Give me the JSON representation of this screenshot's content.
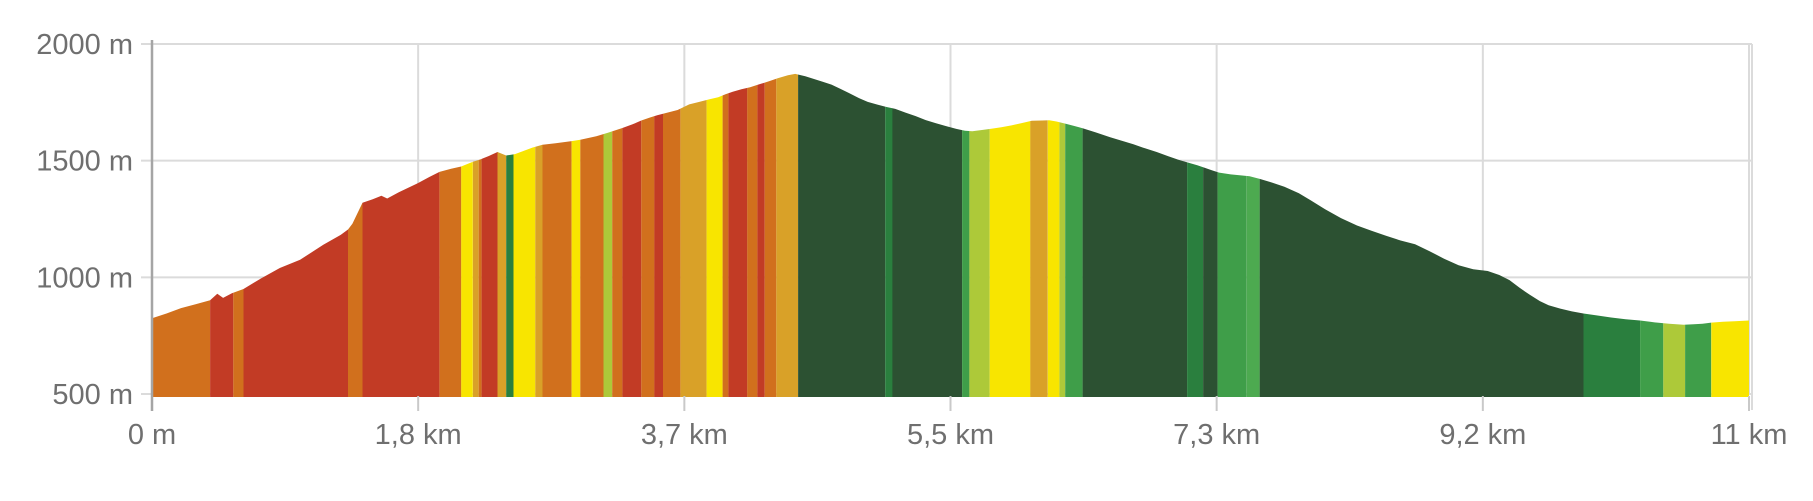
{
  "chart_data": {
    "type": "area",
    "description": "Hike elevation profile with gradient-colored vertical bands (climb steepness reds/oranges, flats yellow, descents greens)",
    "x_axis": {
      "unit": "km",
      "range_km": [
        0,
        11
      ],
      "ticks": [
        {
          "km": 0,
          "label": "0 m"
        },
        {
          "km": 1.8333,
          "label": "1,8 km"
        },
        {
          "km": 3.6667,
          "label": "3,7 km"
        },
        {
          "km": 5.5,
          "label": "5,5 km"
        },
        {
          "km": 7.3333,
          "label": "7,3 km"
        },
        {
          "km": 9.1667,
          "label": "9,2 km"
        },
        {
          "km": 11,
          "label": "11 km"
        }
      ]
    },
    "y_axis": {
      "unit": "m",
      "range_m": [
        500,
        2000
      ],
      "ticks": [
        {
          "m": 500,
          "label": "500 m"
        },
        {
          "m": 1000,
          "label": "1000 m"
        },
        {
          "m": 1500,
          "label": "1500 m"
        },
        {
          "m": 2000,
          "label": "2000 m"
        }
      ]
    },
    "grid": true,
    "legend": false,
    "colors": {
      "red": "#C23B25",
      "orange": "#D1701D",
      "goldenrod": "#D9A128",
      "yellow": "#F8E500",
      "yellowgreen": "#ADC939",
      "mediumgreen": "#3F9E49",
      "mediumgreen2": "#4DAA50",
      "forest": "#2A7F3E",
      "darkgreen": "#2C5132"
    },
    "style_colors": {
      "gridline": "#DBDBDB",
      "axis_line": "#A5A5A5",
      "tick": "#C9C9C9",
      "label": "#6F6F6F"
    },
    "profile_points_km_m": [
      [
        0,
        825
      ],
      [
        0.1,
        845
      ],
      [
        0.2,
        868
      ],
      [
        0.3,
        885
      ],
      [
        0.4,
        902
      ],
      [
        0.45,
        930
      ],
      [
        0.49,
        912
      ],
      [
        0.55,
        932
      ],
      [
        0.63,
        950
      ],
      [
        0.75,
        995
      ],
      [
        0.88,
        1040
      ],
      [
        1.02,
        1075
      ],
      [
        1.18,
        1140
      ],
      [
        1.3,
        1182
      ],
      [
        1.35,
        1205
      ],
      [
        1.38,
        1230
      ],
      [
        1.45,
        1320
      ],
      [
        1.52,
        1335
      ],
      [
        1.58,
        1350
      ],
      [
        1.62,
        1338
      ],
      [
        1.7,
        1365
      ],
      [
        1.83,
        1403
      ],
      [
        1.91,
        1430
      ],
      [
        1.98,
        1452
      ],
      [
        2.06,
        1465
      ],
      [
        2.13,
        1475
      ],
      [
        2.21,
        1495
      ],
      [
        2.26,
        1505
      ],
      [
        2.32,
        1520
      ],
      [
        2.38,
        1537
      ],
      [
        2.44,
        1522
      ],
      [
        2.5,
        1528
      ],
      [
        2.56,
        1542
      ],
      [
        2.62,
        1556
      ],
      [
        2.69,
        1568
      ],
      [
        2.78,
        1575
      ],
      [
        2.89,
        1584
      ],
      [
        2.95,
        1590
      ],
      [
        3.06,
        1605
      ],
      [
        3.14,
        1620
      ],
      [
        3.24,
        1640
      ],
      [
        3.31,
        1656
      ],
      [
        3.37,
        1672
      ],
      [
        3.43,
        1685
      ],
      [
        3.48,
        1695
      ],
      [
        3.55,
        1706
      ],
      [
        3.62,
        1717
      ],
      [
        3.7,
        1741
      ],
      [
        3.77,
        1752
      ],
      [
        3.84,
        1763
      ],
      [
        3.9,
        1772
      ],
      [
        3.95,
        1785
      ],
      [
        4.0,
        1795
      ],
      [
        4.06,
        1806
      ],
      [
        4.12,
        1815
      ],
      [
        4.18,
        1827
      ],
      [
        4.25,
        1840
      ],
      [
        4.31,
        1853
      ],
      [
        4.38,
        1866
      ],
      [
        4.43,
        1872
      ],
      [
        4.5,
        1862
      ],
      [
        4.56,
        1850
      ],
      [
        4.62,
        1838
      ],
      [
        4.68,
        1826
      ],
      [
        4.74,
        1808
      ],
      [
        4.8,
        1790
      ],
      [
        4.87,
        1768
      ],
      [
        4.93,
        1752
      ],
      [
        5.0,
        1740
      ],
      [
        5.06,
        1730
      ],
      [
        5.12,
        1722
      ],
      [
        5.19,
        1706
      ],
      [
        5.26,
        1691
      ],
      [
        5.33,
        1674
      ],
      [
        5.4,
        1660
      ],
      [
        5.47,
        1648
      ],
      [
        5.54,
        1636
      ],
      [
        5.6,
        1628
      ],
      [
        5.65,
        1626
      ],
      [
        5.71,
        1631
      ],
      [
        5.78,
        1637
      ],
      [
        5.85,
        1643
      ],
      [
        5.92,
        1651
      ],
      [
        5.99,
        1661
      ],
      [
        6.06,
        1671
      ],
      [
        6.13,
        1672
      ],
      [
        6.18,
        1673
      ],
      [
        6.23,
        1668
      ],
      [
        6.29,
        1659
      ],
      [
        6.35,
        1649
      ],
      [
        6.41,
        1639
      ],
      [
        6.5,
        1621
      ],
      [
        6.6,
        1600
      ],
      [
        6.68,
        1585
      ],
      [
        6.76,
        1570
      ],
      [
        6.84,
        1553
      ],
      [
        6.92,
        1537
      ],
      [
        7.0,
        1519
      ],
      [
        7.07,
        1504
      ],
      [
        7.14,
        1491
      ],
      [
        7.2,
        1480
      ],
      [
        7.25,
        1470
      ],
      [
        7.3,
        1459
      ],
      [
        7.35,
        1449
      ],
      [
        7.43,
        1441
      ],
      [
        7.5,
        1437
      ],
      [
        7.56,
        1433
      ],
      [
        7.63,
        1422
      ],
      [
        7.71,
        1407
      ],
      [
        7.8,
        1388
      ],
      [
        7.9,
        1360
      ],
      [
        7.98,
        1330
      ],
      [
        8.08,
        1292
      ],
      [
        8.19,
        1254
      ],
      [
        8.3,
        1222
      ],
      [
        8.4,
        1200
      ],
      [
        8.5,
        1178
      ],
      [
        8.6,
        1158
      ],
      [
        8.7,
        1142
      ],
      [
        8.8,
        1112
      ],
      [
        8.9,
        1080
      ],
      [
        9.0,
        1052
      ],
      [
        9.1,
        1035
      ],
      [
        9.2,
        1027
      ],
      [
        9.28,
        1010
      ],
      [
        9.35,
        988
      ],
      [
        9.42,
        955
      ],
      [
        9.49,
        925
      ],
      [
        9.56,
        898
      ],
      [
        9.62,
        880
      ],
      [
        9.7,
        866
      ],
      [
        9.78,
        854
      ],
      [
        9.86,
        845
      ],
      [
        9.95,
        837
      ],
      [
        10.05,
        828
      ],
      [
        10.15,
        820
      ],
      [
        10.25,
        815
      ],
      [
        10.35,
        807
      ],
      [
        10.45,
        801
      ],
      [
        10.55,
        797
      ],
      [
        10.62,
        799
      ],
      [
        10.68,
        801
      ],
      [
        10.74,
        806
      ],
      [
        10.82,
        810
      ],
      [
        10.9,
        812
      ],
      [
        11.0,
        815
      ]
    ],
    "gradient_segments": [
      {
        "from_km": 0.0,
        "to_km": 0.4,
        "color": "orange"
      },
      {
        "from_km": 0.4,
        "to_km": 0.56,
        "color": "red"
      },
      {
        "from_km": 0.56,
        "to_km": 0.63,
        "color": "orange"
      },
      {
        "from_km": 0.63,
        "to_km": 1.35,
        "color": "red"
      },
      {
        "from_km": 1.35,
        "to_km": 1.45,
        "color": "orange"
      },
      {
        "from_km": 1.45,
        "to_km": 1.98,
        "color": "red"
      },
      {
        "from_km": 1.98,
        "to_km": 2.13,
        "color": "orange"
      },
      {
        "from_km": 2.13,
        "to_km": 2.21,
        "color": "yellow"
      },
      {
        "from_km": 2.21,
        "to_km": 2.25,
        "color": "goldenrod"
      },
      {
        "from_km": 2.25,
        "to_km": 2.27,
        "color": "orange"
      },
      {
        "from_km": 2.27,
        "to_km": 2.38,
        "color": "red"
      },
      {
        "from_km": 2.38,
        "to_km": 2.44,
        "color": "goldenrod"
      },
      {
        "from_km": 2.44,
        "to_km": 2.49,
        "color": "forest"
      },
      {
        "from_km": 2.49,
        "to_km": 2.64,
        "color": "yellow"
      },
      {
        "from_km": 2.64,
        "to_km": 2.69,
        "color": "goldenrod"
      },
      {
        "from_km": 2.69,
        "to_km": 2.89,
        "color": "orange"
      },
      {
        "from_km": 2.89,
        "to_km": 2.95,
        "color": "yellow"
      },
      {
        "from_km": 2.95,
        "to_km": 3.11,
        "color": "orange"
      },
      {
        "from_km": 3.11,
        "to_km": 3.17,
        "color": "yellowgreen"
      },
      {
        "from_km": 3.17,
        "to_km": 3.24,
        "color": "orange"
      },
      {
        "from_km": 3.24,
        "to_km": 3.37,
        "color": "red"
      },
      {
        "from_km": 3.37,
        "to_km": 3.46,
        "color": "orange"
      },
      {
        "from_km": 3.46,
        "to_km": 3.52,
        "color": "red"
      },
      {
        "from_km": 3.52,
        "to_km": 3.64,
        "color": "orange"
      },
      {
        "from_km": 3.64,
        "to_km": 3.82,
        "color": "goldenrod"
      },
      {
        "from_km": 3.82,
        "to_km": 3.93,
        "color": "yellow"
      },
      {
        "from_km": 3.93,
        "to_km": 3.97,
        "color": "orange"
      },
      {
        "from_km": 3.97,
        "to_km": 4.1,
        "color": "red"
      },
      {
        "from_km": 4.1,
        "to_km": 4.17,
        "color": "orange"
      },
      {
        "from_km": 4.17,
        "to_km": 4.22,
        "color": "red"
      },
      {
        "from_km": 4.22,
        "to_km": 4.3,
        "color": "orange"
      },
      {
        "from_km": 4.3,
        "to_km": 4.45,
        "color": "goldenrod"
      },
      {
        "from_km": 4.45,
        "to_km": 5.05,
        "color": "darkgreen"
      },
      {
        "from_km": 5.05,
        "to_km": 5.1,
        "color": "forest"
      },
      {
        "from_km": 5.1,
        "to_km": 5.58,
        "color": "darkgreen"
      },
      {
        "from_km": 5.58,
        "to_km": 5.63,
        "color": "mediumgreen"
      },
      {
        "from_km": 5.63,
        "to_km": 5.77,
        "color": "yellowgreen"
      },
      {
        "from_km": 5.77,
        "to_km": 6.05,
        "color": "yellow"
      },
      {
        "from_km": 6.05,
        "to_km": 6.17,
        "color": "goldenrod"
      },
      {
        "from_km": 6.17,
        "to_km": 6.25,
        "color": "yellow"
      },
      {
        "from_km": 6.25,
        "to_km": 6.29,
        "color": "yellowgreen"
      },
      {
        "from_km": 6.29,
        "to_km": 6.41,
        "color": "mediumgreen"
      },
      {
        "from_km": 6.41,
        "to_km": 7.13,
        "color": "darkgreen"
      },
      {
        "from_km": 7.13,
        "to_km": 7.24,
        "color": "forest"
      },
      {
        "from_km": 7.24,
        "to_km": 7.34,
        "color": "darkgreen"
      },
      {
        "from_km": 7.34,
        "to_km": 7.54,
        "color": "mediumgreen"
      },
      {
        "from_km": 7.54,
        "to_km": 7.63,
        "color": "mediumgreen2"
      },
      {
        "from_km": 7.63,
        "to_km": 9.86,
        "color": "darkgreen"
      },
      {
        "from_km": 9.86,
        "to_km": 10.25,
        "color": "forest"
      },
      {
        "from_km": 10.25,
        "to_km": 10.41,
        "color": "mediumgreen"
      },
      {
        "from_km": 10.41,
        "to_km": 10.56,
        "color": "yellowgreen"
      },
      {
        "from_km": 10.56,
        "to_km": 10.74,
        "color": "mediumgreen"
      },
      {
        "from_km": 10.74,
        "to_km": 11.0,
        "color": "yellow"
      }
    ]
  }
}
